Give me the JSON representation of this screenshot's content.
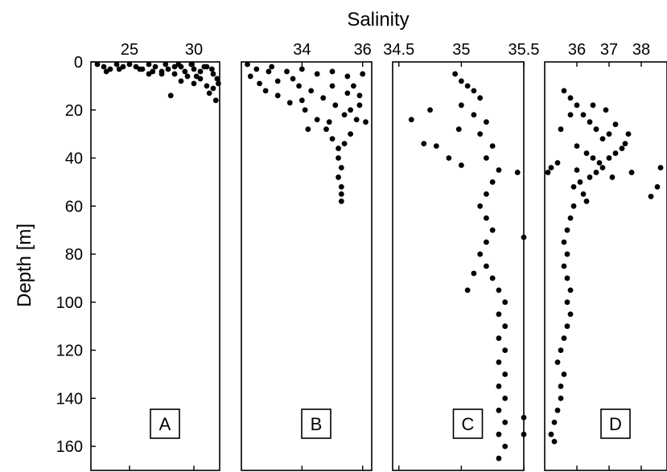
{
  "chart_data": {
    "type": "scatter",
    "xlabel": "Salinity",
    "ylabel": "Depth [m]",
    "ylim": [
      0,
      170
    ],
    "y_inverted": true,
    "y_ticks": [
      0,
      20,
      40,
      60,
      80,
      100,
      120,
      140,
      160
    ],
    "y_tick_labels": [
      "0",
      "20",
      "40",
      "60",
      "80",
      "100",
      "120",
      "140",
      "160"
    ],
    "panels": [
      {
        "label": "A",
        "xlim": [
          22,
          32
        ],
        "x_ticks": [
          25,
          30
        ],
        "x_tick_labels": [
          "25",
          "30"
        ],
        "points": [
          [
            22.5,
            1
          ],
          [
            23,
            2
          ],
          [
            23.5,
            3
          ],
          [
            24,
            1
          ],
          [
            24.5,
            2
          ],
          [
            25,
            1
          ],
          [
            25.5,
            2
          ],
          [
            26,
            3
          ],
          [
            26.5,
            1
          ],
          [
            27,
            2
          ],
          [
            27.5,
            4
          ],
          [
            28,
            3
          ],
          [
            28.5,
            5
          ],
          [
            29,
            2
          ],
          [
            29.5,
            6
          ],
          [
            30,
            3
          ],
          [
            30.5,
            4
          ],
          [
            31,
            2
          ],
          [
            31.5,
            5
          ],
          [
            31.8,
            7
          ],
          [
            29,
            8
          ],
          [
            30,
            9
          ],
          [
            31,
            10
          ],
          [
            31.5,
            11
          ],
          [
            30.5,
            7
          ],
          [
            28.2,
            14
          ],
          [
            27.5,
            5
          ],
          [
            26.8,
            4
          ],
          [
            31.2,
            13
          ],
          [
            31.7,
            16
          ],
          [
            30.8,
            2
          ],
          [
            29.8,
            1
          ],
          [
            28.8,
            1
          ],
          [
            27.8,
            1
          ],
          [
            24.2,
            3
          ],
          [
            23.2,
            4
          ],
          [
            25.8,
            3
          ],
          [
            26.5,
            5
          ],
          [
            29.3,
            4
          ],
          [
            31.4,
            3
          ],
          [
            31.9,
            9
          ],
          [
            30.2,
            6
          ],
          [
            28.5,
            2
          ]
        ]
      },
      {
        "label": "B",
        "xlim": [
          32,
          36.3
        ],
        "x_ticks": [
          34,
          36
        ],
        "x_tick_labels": [
          "34",
          "36"
        ],
        "points": [
          [
            32.2,
            1
          ],
          [
            32.5,
            3
          ],
          [
            33,
            2
          ],
          [
            33.5,
            4
          ],
          [
            34,
            3
          ],
          [
            34.5,
            5
          ],
          [
            35,
            4
          ],
          [
            35.5,
            6
          ],
          [
            36,
            5
          ],
          [
            32.3,
            6
          ],
          [
            32.6,
            9
          ],
          [
            32.8,
            12
          ],
          [
            33.2,
            14
          ],
          [
            33.6,
            17
          ],
          [
            34.1,
            20
          ],
          [
            34.5,
            24
          ],
          [
            34.8,
            28
          ],
          [
            35,
            32
          ],
          [
            35.2,
            36
          ],
          [
            35.2,
            40
          ],
          [
            35.3,
            44
          ],
          [
            35.2,
            48
          ],
          [
            35.3,
            52
          ],
          [
            35.3,
            55
          ],
          [
            35.3,
            58
          ],
          [
            35.6,
            20
          ],
          [
            35.8,
            24
          ],
          [
            36.1,
            25
          ],
          [
            35.9,
            18
          ],
          [
            33.9,
            10
          ],
          [
            34.3,
            12
          ],
          [
            34.7,
            15
          ],
          [
            35.1,
            18
          ],
          [
            35.4,
            22
          ],
          [
            33.2,
            8
          ],
          [
            33.7,
            7
          ],
          [
            35.7,
            10
          ],
          [
            35.9,
            14
          ],
          [
            35.6,
            30
          ],
          [
            35.4,
            34
          ],
          [
            34.9,
            25
          ],
          [
            32.9,
            4
          ],
          [
            34.2,
            28
          ],
          [
            34.0,
            16
          ],
          [
            35.0,
            10
          ],
          [
            35.5,
            13
          ]
        ]
      },
      {
        "label": "C",
        "xlim": [
          34.45,
          35.5
        ],
        "x_ticks": [
          34.5,
          35,
          35.5
        ],
        "x_tick_labels": [
          "34.5",
          "35",
          "35.5"
        ],
        "points": [
          [
            34.95,
            5
          ],
          [
            35.0,
            8
          ],
          [
            35.05,
            10
          ],
          [
            35.1,
            12
          ],
          [
            35.15,
            15
          ],
          [
            35.0,
            18
          ],
          [
            35.1,
            22
          ],
          [
            35.2,
            25
          ],
          [
            35.15,
            30
          ],
          [
            35.25,
            35
          ],
          [
            35.2,
            40
          ],
          [
            35.3,
            45
          ],
          [
            35.25,
            50
          ],
          [
            35.2,
            55
          ],
          [
            35.15,
            60
          ],
          [
            35.2,
            65
          ],
          [
            35.25,
            70
          ],
          [
            35.2,
            75
          ],
          [
            35.15,
            80
          ],
          [
            35.2,
            85
          ],
          [
            35.25,
            90
          ],
          [
            35.3,
            95
          ],
          [
            35.35,
            100
          ],
          [
            35.3,
            105
          ],
          [
            35.35,
            110
          ],
          [
            35.3,
            115
          ],
          [
            35.35,
            120
          ],
          [
            35.3,
            125
          ],
          [
            35.35,
            130
          ],
          [
            35.3,
            135
          ],
          [
            35.35,
            140
          ],
          [
            35.3,
            145
          ],
          [
            35.35,
            150
          ],
          [
            35.3,
            155
          ],
          [
            35.35,
            160
          ],
          [
            35.3,
            165
          ],
          [
            34.6,
            24
          ],
          [
            34.75,
            20
          ],
          [
            34.8,
            35
          ],
          [
            34.9,
            40
          ],
          [
            34.7,
            34
          ],
          [
            35.45,
            46
          ],
          [
            35.5,
            73
          ],
          [
            35.5,
            148
          ],
          [
            35.5,
            155
          ],
          [
            35.05,
            95
          ],
          [
            35.1,
            88
          ],
          [
            35.0,
            43
          ],
          [
            34.98,
            28
          ]
        ]
      },
      {
        "label": "D",
        "xlim": [
          35.0,
          38.8
        ],
        "x_ticks": [
          36,
          37,
          38
        ],
        "x_tick_labels": [
          "36",
          "37",
          "38"
        ],
        "points": [
          [
            35.6,
            12
          ],
          [
            35.8,
            15
          ],
          [
            36.0,
            18
          ],
          [
            36.2,
            22
          ],
          [
            36.4,
            25
          ],
          [
            36.6,
            28
          ],
          [
            36.8,
            32
          ],
          [
            37.0,
            30
          ],
          [
            37.2,
            26
          ],
          [
            36.0,
            35
          ],
          [
            36.3,
            38
          ],
          [
            36.5,
            40
          ],
          [
            36.7,
            42
          ],
          [
            35.4,
            42
          ],
          [
            35.2,
            44
          ],
          [
            35.1,
            46
          ],
          [
            37.4,
            36
          ],
          [
            37.6,
            30
          ],
          [
            38.6,
            44
          ],
          [
            38.3,
            56
          ],
          [
            38.5,
            52
          ],
          [
            36.0,
            45
          ],
          [
            36.1,
            50
          ],
          [
            36.2,
            55
          ],
          [
            35.9,
            60
          ],
          [
            35.8,
            65
          ],
          [
            35.7,
            70
          ],
          [
            35.6,
            75
          ],
          [
            35.7,
            80
          ],
          [
            35.6,
            85
          ],
          [
            35.7,
            90
          ],
          [
            35.8,
            95
          ],
          [
            35.7,
            100
          ],
          [
            35.8,
            105
          ],
          [
            35.7,
            110
          ],
          [
            35.6,
            115
          ],
          [
            35.5,
            120
          ],
          [
            35.4,
            125
          ],
          [
            35.6,
            130
          ],
          [
            35.5,
            135
          ],
          [
            35.5,
            140
          ],
          [
            35.4,
            145
          ],
          [
            35.3,
            150
          ],
          [
            35.2,
            155
          ],
          [
            35.3,
            158
          ],
          [
            36.4,
            48
          ],
          [
            36.6,
            46
          ],
          [
            36.8,
            44
          ],
          [
            37.0,
            40
          ],
          [
            37.2,
            38
          ],
          [
            37.5,
            34
          ],
          [
            35.5,
            28
          ],
          [
            35.8,
            22
          ],
          [
            36.5,
            18
          ],
          [
            36.9,
            20
          ],
          [
            35.9,
            52
          ],
          [
            36.3,
            58
          ],
          [
            37.1,
            48
          ],
          [
            37.7,
            46
          ]
        ]
      }
    ]
  }
}
